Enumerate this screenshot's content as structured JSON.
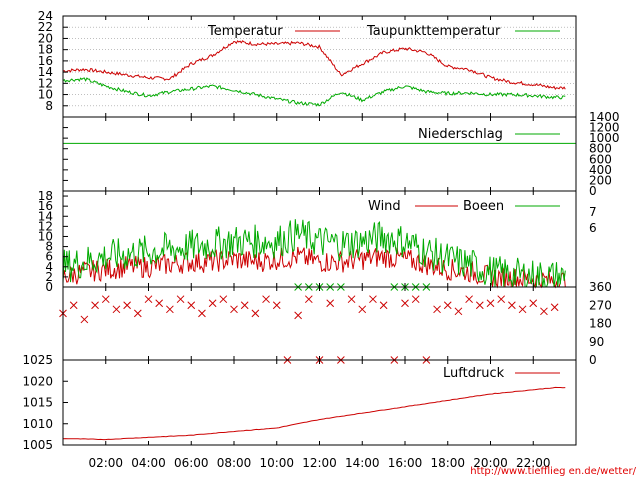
{
  "chart_data": [
    {
      "type": "line",
      "panel": "temperature",
      "ylim": [
        6,
        24
      ],
      "yticks": [
        "8",
        "10",
        "12",
        "14",
        "16",
        "18",
        "20",
        "22",
        "24"
      ],
      "grid": true,
      "legend_position": "top",
      "x_hours": [
        0,
        1,
        2,
        3,
        4,
        5,
        6,
        7,
        8,
        9,
        10,
        11,
        12,
        13,
        14,
        15,
        16,
        17,
        18,
        19,
        20,
        21,
        22,
        23
      ],
      "series": [
        {
          "name": "Temperatur",
          "color": "#cc0000",
          "values": [
            14.2,
            14.5,
            14.0,
            13.5,
            13.0,
            12.8,
            15.5,
            17.0,
            19.5,
            19.0,
            19.0,
            19.2,
            18.5,
            13.5,
            15.5,
            17.5,
            18.2,
            17.5,
            15.0,
            14.5,
            13.0,
            12.2,
            11.8,
            11.2
          ]
        },
        {
          "name": "Taupunkttemperatur",
          "color": "#00aa00",
          "values": [
            12.5,
            12.8,
            11.5,
            10.5,
            9.8,
            10.5,
            11.0,
            11.5,
            10.8,
            10.0,
            9.2,
            8.5,
            8.2,
            10.5,
            9.0,
            10.5,
            11.5,
            10.5,
            10.2,
            10.3,
            10.0,
            10.0,
            9.8,
            9.5
          ]
        }
      ]
    },
    {
      "type": "line",
      "panel": "precipitation",
      "ylim": [
        0,
        1400
      ],
      "yticks": [
        "0",
        "200",
        "400",
        "600",
        "800",
        "1000",
        "1200",
        "1400"
      ],
      "legend_position": "top-right",
      "series": [
        {
          "name": "Niederschlag",
          "color": "#00aa00",
          "values": [
            900,
            900
          ]
        }
      ]
    },
    {
      "type": "line",
      "panel": "wind",
      "ylim": [
        0,
        19
      ],
      "yticks": [
        "0",
        "2",
        "4",
        "6",
        "8",
        "10",
        "12",
        "14",
        "16",
        "18"
      ],
      "yticks_right": [
        "6",
        "7"
      ],
      "legend_position": "top",
      "x_hours": [
        0,
        1,
        2,
        3,
        4,
        5,
        6,
        7,
        8,
        9,
        10,
        11,
        12,
        13,
        14,
        15,
        16,
        17,
        18,
        19,
        20,
        21,
        22,
        23
      ],
      "series": [
        {
          "name": "Wind",
          "color": "#cc0000",
          "values": [
            2,
            3,
            3.5,
            4,
            4,
            4.5,
            5,
            5,
            5.5,
            5,
            5.5,
            6,
            5,
            5,
            5.5,
            6,
            5.5,
            4.5,
            3.5,
            3,
            2,
            1.8,
            1.5,
            1.2
          ]
        },
        {
          "name": "Boeen",
          "color": "#00aa00",
          "values": [
            4,
            5,
            6,
            6.5,
            7,
            7.5,
            8,
            8.5,
            9,
            9,
            9,
            10.5,
            9,
            8.5,
            9,
            10,
            9,
            7,
            5.5,
            4.5,
            3,
            2.5,
            2.2,
            2
          ]
        }
      ]
    },
    {
      "type": "scatter",
      "panel": "wind-direction",
      "ylim": [
        0,
        360
      ],
      "yticks_right": [
        "0",
        "90",
        "180",
        "270",
        "360"
      ],
      "series": [
        {
          "name": "",
          "color": "#cc0000",
          "x": [
            0,
            0.5,
            1,
            1.5,
            2,
            2.5,
            3,
            3.5,
            4,
            4.5,
            5,
            5.5,
            6,
            6.5,
            7,
            7.5,
            8,
            8.5,
            9,
            9.5,
            10,
            10.5,
            11,
            11.5,
            12,
            12.5,
            13,
            13.5,
            14,
            14.5,
            15,
            15.5,
            16,
            16.5,
            17,
            17.5,
            18,
            18.5,
            19,
            19.5,
            20,
            20.5,
            21,
            21.5,
            22,
            22.5,
            23
          ],
          "y": [
            230,
            270,
            200,
            270,
            300,
            250,
            270,
            230,
            300,
            280,
            250,
            300,
            270,
            230,
            280,
            300,
            250,
            270,
            230,
            300,
            270,
            0,
            220,
            300,
            0,
            280,
            0,
            300,
            250,
            300,
            270,
            0,
            280,
            300,
            0,
            250,
            270,
            240,
            300,
            270,
            280,
            300,
            270,
            250,
            280,
            240,
            260
          ]
        },
        {
          "name": "",
          "color": "#00aa00",
          "x": [
            11,
            11.5,
            12,
            12.5,
            13,
            15.5,
            16,
            16.5,
            17
          ],
          "y": [
            360,
            360,
            360,
            360,
            360,
            360,
            360,
            360,
            360
          ]
        }
      ]
    },
    {
      "type": "line",
      "panel": "pressure",
      "ylim": [
        1005,
        1025
      ],
      "yticks": [
        "1005",
        "1010",
        "1015",
        "1020",
        "1025"
      ],
      "legend_position": "top-right",
      "x_hours": [
        0,
        2,
        4,
        6,
        8,
        10,
        12,
        14,
        16,
        18,
        20,
        22,
        23
      ],
      "series": [
        {
          "name": "Luftdruck",
          "color": "#cc0000",
          "values": [
            1006.5,
            1006.3,
            1006.8,
            1007.3,
            1008.2,
            1009.0,
            1011.0,
            1012.5,
            1014.0,
            1015.5,
            1017.0,
            1018.0,
            1018.5
          ]
        }
      ]
    }
  ],
  "x_tick_labels": [
    "02:00",
    "04:00",
    "06:00",
    "08:00",
    "10:00",
    "12:00",
    "14:00",
    "16:00",
    "18:00",
    "20:00",
    "22:00"
  ],
  "credit": "http://www.tiefflieg en.de/wetter/"
}
